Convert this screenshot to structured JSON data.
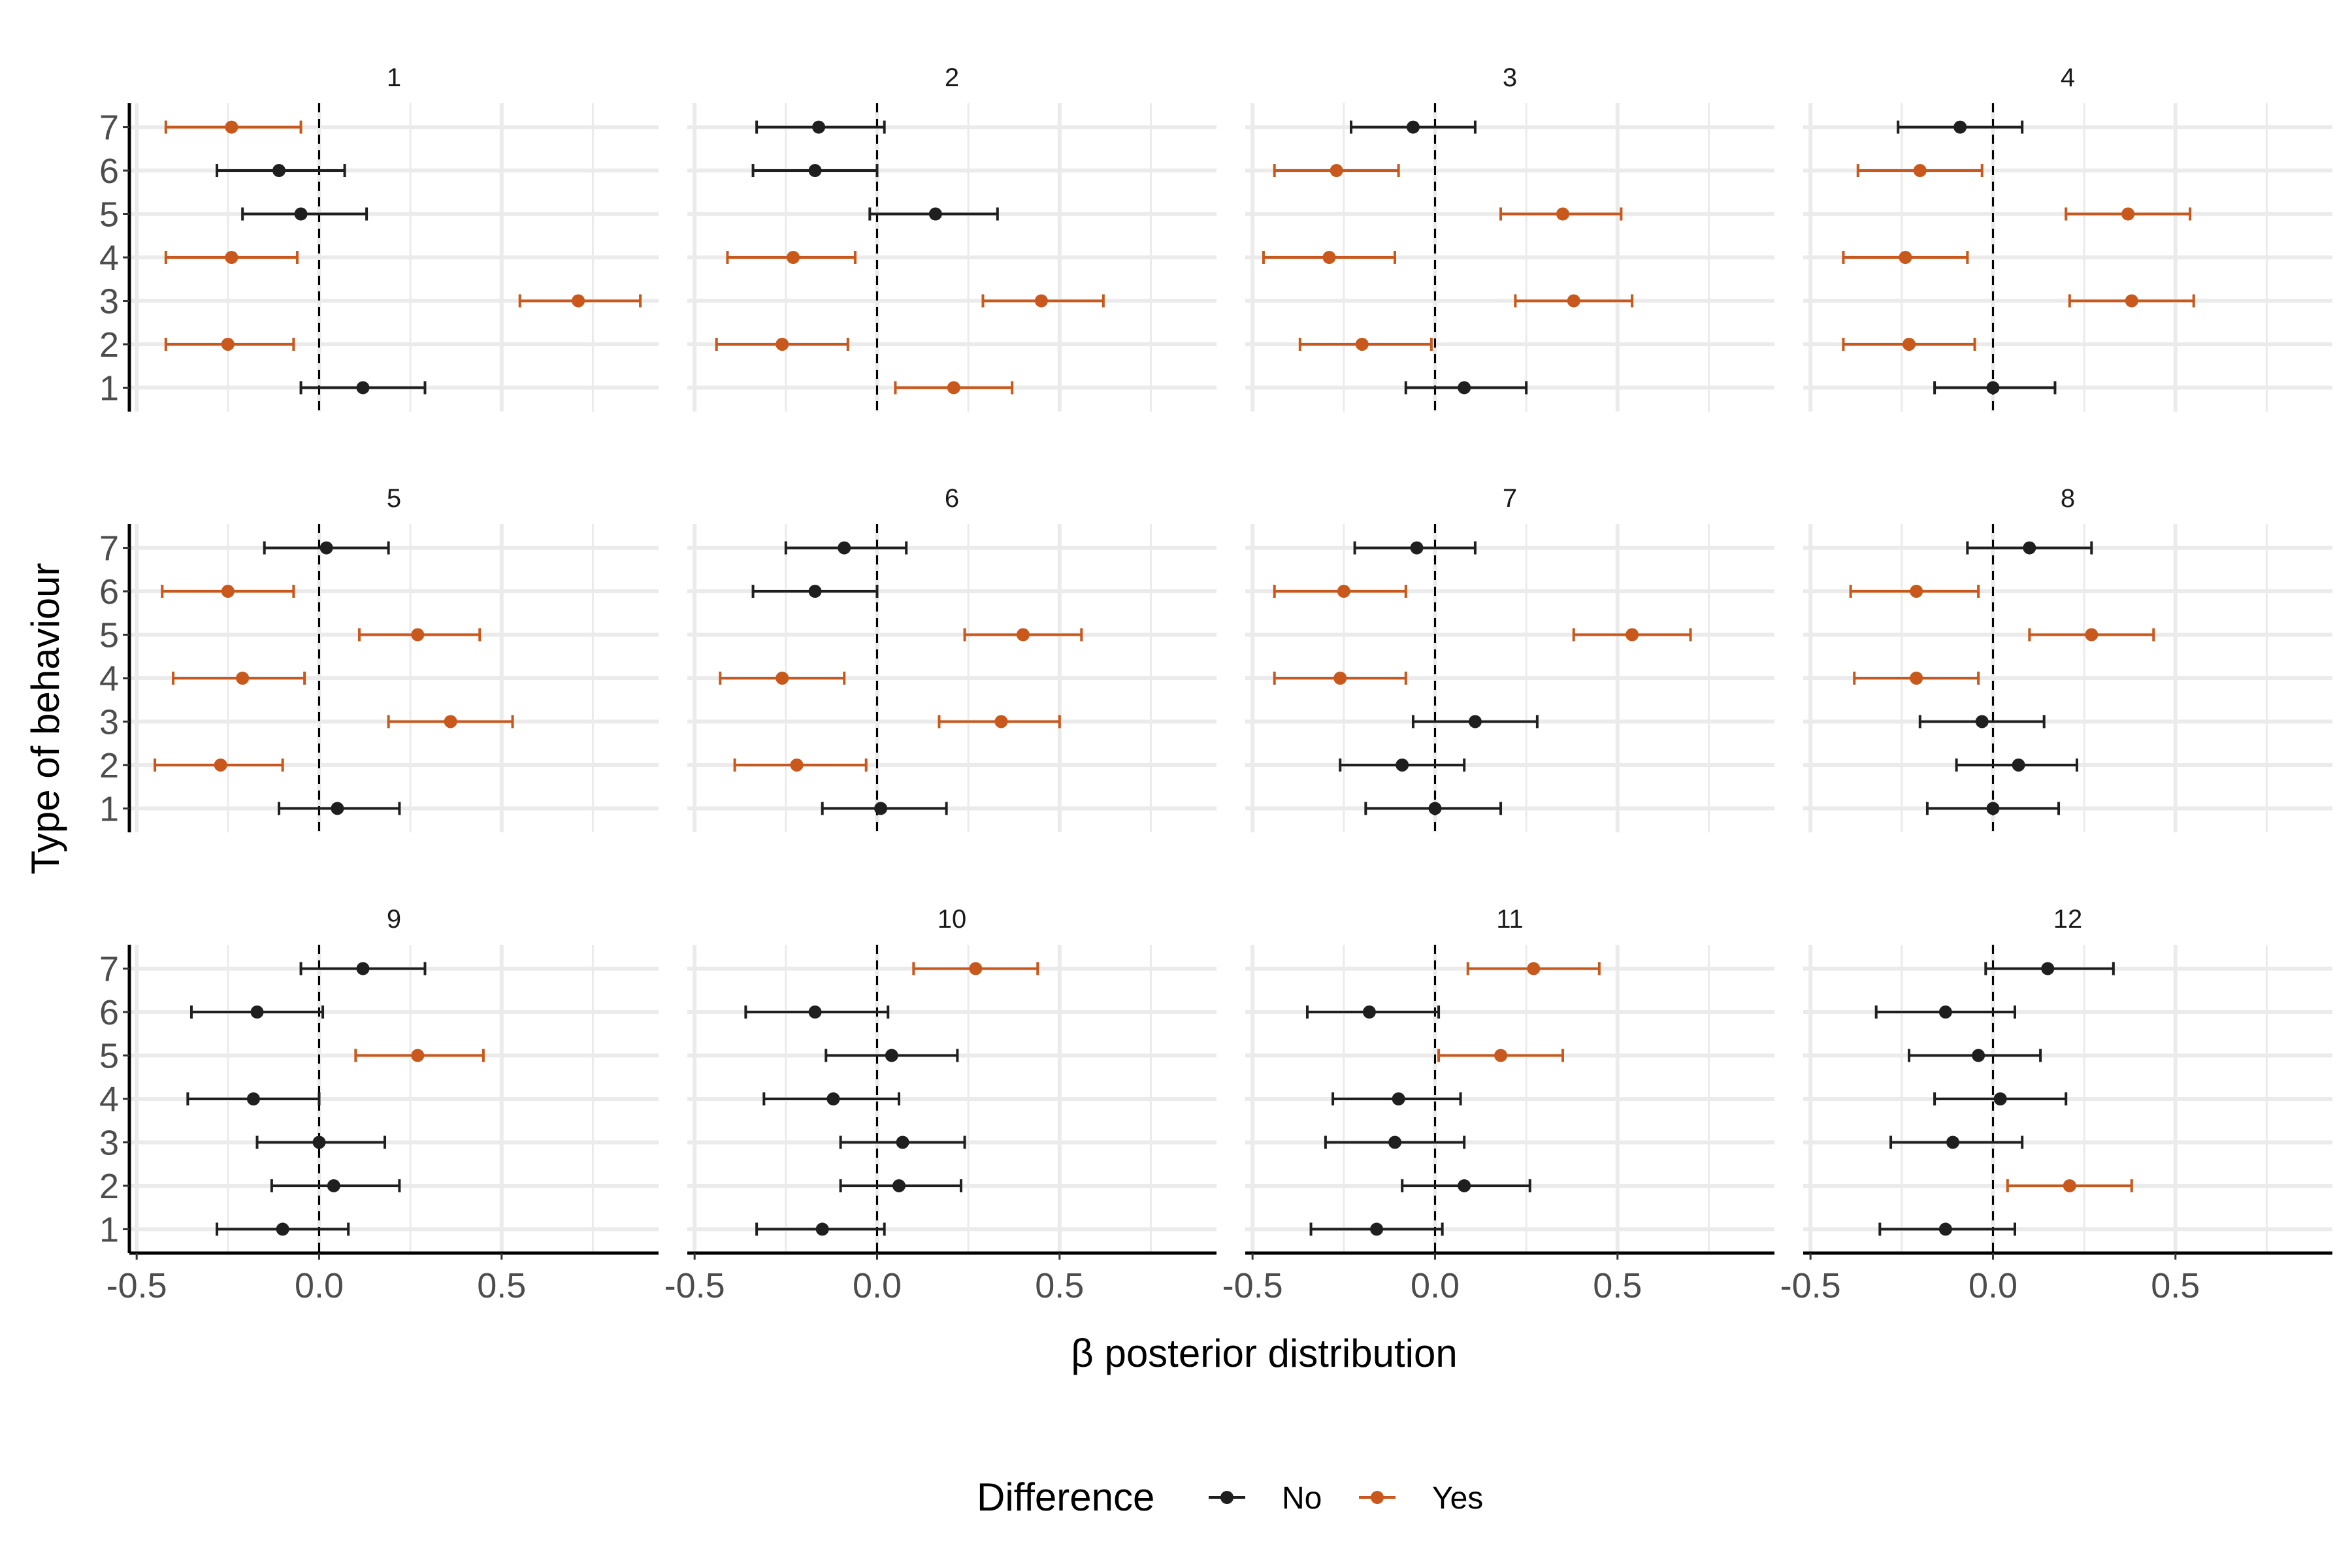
{
  "chart_data": {
    "type": "forest",
    "xlabel": "β posterior distribution",
    "ylabel": "Type of behaviour",
    "xlim": [
      -0.52,
      0.93
    ],
    "xticks": [
      -0.5,
      0.0,
      0.5
    ],
    "xtick_labels": [
      "-0.5",
      "0.0",
      "0.5"
    ],
    "xgrid_minor": [
      -0.25,
      0.25,
      0.75
    ],
    "yticks": [
      1,
      2,
      3,
      4,
      5,
      6,
      7
    ],
    "ytick_labels": [
      "1",
      "2",
      "3",
      "4",
      "5",
      "6",
      "7"
    ],
    "legend": {
      "title": "Difference",
      "position": "bottom",
      "entries": [
        {
          "label": "No",
          "color": "#1f1f1f"
        },
        {
          "label": "Yes",
          "color": "#c8581b"
        }
      ]
    },
    "colors": {
      "No": "#1f1f1f",
      "Yes": "#c8581b"
    },
    "panels": [
      {
        "title": "1",
        "rows": [
          {
            "y": 7,
            "est": -0.24,
            "lo": -0.42,
            "hi": -0.05,
            "diff": "Yes"
          },
          {
            "y": 6,
            "est": -0.11,
            "lo": -0.28,
            "hi": 0.07,
            "diff": "No"
          },
          {
            "y": 5,
            "est": -0.05,
            "lo": -0.21,
            "hi": 0.13,
            "diff": "No"
          },
          {
            "y": 4,
            "est": -0.24,
            "lo": -0.42,
            "hi": -0.06,
            "diff": "Yes"
          },
          {
            "y": 3,
            "est": 0.71,
            "lo": 0.55,
            "hi": 0.88,
            "diff": "Yes"
          },
          {
            "y": 2,
            "est": -0.25,
            "lo": -0.42,
            "hi": -0.07,
            "diff": "Yes"
          },
          {
            "y": 1,
            "est": 0.12,
            "lo": -0.05,
            "hi": 0.29,
            "diff": "No"
          }
        ]
      },
      {
        "title": "2",
        "rows": [
          {
            "y": 7,
            "est": -0.16,
            "lo": -0.33,
            "hi": 0.02,
            "diff": "No"
          },
          {
            "y": 6,
            "est": -0.17,
            "lo": -0.34,
            "hi": 0.0,
            "diff": "No"
          },
          {
            "y": 5,
            "est": 0.16,
            "lo": -0.02,
            "hi": 0.33,
            "diff": "No"
          },
          {
            "y": 4,
            "est": -0.23,
            "lo": -0.41,
            "hi": -0.06,
            "diff": "Yes"
          },
          {
            "y": 3,
            "est": 0.45,
            "lo": 0.29,
            "hi": 0.62,
            "diff": "Yes"
          },
          {
            "y": 2,
            "est": -0.26,
            "lo": -0.44,
            "hi": -0.08,
            "diff": "Yes"
          },
          {
            "y": 1,
            "est": 0.21,
            "lo": 0.05,
            "hi": 0.37,
            "diff": "Yes"
          }
        ]
      },
      {
        "title": "3",
        "rows": [
          {
            "y": 7,
            "est": -0.06,
            "lo": -0.23,
            "hi": 0.11,
            "diff": "No"
          },
          {
            "y": 6,
            "est": -0.27,
            "lo": -0.44,
            "hi": -0.1,
            "diff": "Yes"
          },
          {
            "y": 5,
            "est": 0.35,
            "lo": 0.18,
            "hi": 0.51,
            "diff": "Yes"
          },
          {
            "y": 4,
            "est": -0.29,
            "lo": -0.47,
            "hi": -0.11,
            "diff": "Yes"
          },
          {
            "y": 3,
            "est": 0.38,
            "lo": 0.22,
            "hi": 0.54,
            "diff": "Yes"
          },
          {
            "y": 2,
            "est": -0.2,
            "lo": -0.37,
            "hi": -0.01,
            "diff": "Yes"
          },
          {
            "y": 1,
            "est": 0.08,
            "lo": -0.08,
            "hi": 0.25,
            "diff": "No"
          }
        ]
      },
      {
        "title": "4",
        "rows": [
          {
            "y": 7,
            "est": -0.09,
            "lo": -0.26,
            "hi": 0.08,
            "diff": "No"
          },
          {
            "y": 6,
            "est": -0.2,
            "lo": -0.37,
            "hi": -0.03,
            "diff": "Yes"
          },
          {
            "y": 5,
            "est": 0.37,
            "lo": 0.2,
            "hi": 0.54,
            "diff": "Yes"
          },
          {
            "y": 4,
            "est": -0.24,
            "lo": -0.41,
            "hi": -0.07,
            "diff": "Yes"
          },
          {
            "y": 3,
            "est": 0.38,
            "lo": 0.21,
            "hi": 0.55,
            "diff": "Yes"
          },
          {
            "y": 2,
            "est": -0.23,
            "lo": -0.41,
            "hi": -0.05,
            "diff": "Yes"
          },
          {
            "y": 1,
            "est": 0.0,
            "lo": -0.16,
            "hi": 0.17,
            "diff": "No"
          }
        ]
      },
      {
        "title": "5",
        "rows": [
          {
            "y": 7,
            "est": 0.02,
            "lo": -0.15,
            "hi": 0.19,
            "diff": "No"
          },
          {
            "y": 6,
            "est": -0.25,
            "lo": -0.43,
            "hi": -0.07,
            "diff": "Yes"
          },
          {
            "y": 5,
            "est": 0.27,
            "lo": 0.11,
            "hi": 0.44,
            "diff": "Yes"
          },
          {
            "y": 4,
            "est": -0.21,
            "lo": -0.4,
            "hi": -0.04,
            "diff": "Yes"
          },
          {
            "y": 3,
            "est": 0.36,
            "lo": 0.19,
            "hi": 0.53,
            "diff": "Yes"
          },
          {
            "y": 2,
            "est": -0.27,
            "lo": -0.45,
            "hi": -0.1,
            "diff": "Yes"
          },
          {
            "y": 1,
            "est": 0.05,
            "lo": -0.11,
            "hi": 0.22,
            "diff": "No"
          }
        ]
      },
      {
        "title": "6",
        "rows": [
          {
            "y": 7,
            "est": -0.09,
            "lo": -0.25,
            "hi": 0.08,
            "diff": "No"
          },
          {
            "y": 6,
            "est": -0.17,
            "lo": -0.34,
            "hi": 0.0,
            "diff": "No"
          },
          {
            "y": 5,
            "est": 0.4,
            "lo": 0.24,
            "hi": 0.56,
            "diff": "Yes"
          },
          {
            "y": 4,
            "est": -0.26,
            "lo": -0.43,
            "hi": -0.09,
            "diff": "Yes"
          },
          {
            "y": 3,
            "est": 0.34,
            "lo": 0.17,
            "hi": 0.5,
            "diff": "Yes"
          },
          {
            "y": 2,
            "est": -0.22,
            "lo": -0.39,
            "hi": -0.03,
            "diff": "Yes"
          },
          {
            "y": 1,
            "est": 0.01,
            "lo": -0.15,
            "hi": 0.19,
            "diff": "No"
          }
        ]
      },
      {
        "title": "7",
        "rows": [
          {
            "y": 7,
            "est": -0.05,
            "lo": -0.22,
            "hi": 0.11,
            "diff": "No"
          },
          {
            "y": 6,
            "est": -0.25,
            "lo": -0.44,
            "hi": -0.08,
            "diff": "Yes"
          },
          {
            "y": 5,
            "est": 0.54,
            "lo": 0.38,
            "hi": 0.7,
            "diff": "Yes"
          },
          {
            "y": 4,
            "est": -0.26,
            "lo": -0.44,
            "hi": -0.08,
            "diff": "Yes"
          },
          {
            "y": 3,
            "est": 0.11,
            "lo": -0.06,
            "hi": 0.28,
            "diff": "No"
          },
          {
            "y": 2,
            "est": -0.09,
            "lo": -0.26,
            "hi": 0.08,
            "diff": "No"
          },
          {
            "y": 1,
            "est": 0.0,
            "lo": -0.19,
            "hi": 0.18,
            "diff": "No"
          }
        ]
      },
      {
        "title": "8",
        "rows": [
          {
            "y": 7,
            "est": 0.1,
            "lo": -0.07,
            "hi": 0.27,
            "diff": "No"
          },
          {
            "y": 6,
            "est": -0.21,
            "lo": -0.39,
            "hi": -0.04,
            "diff": "Yes"
          },
          {
            "y": 5,
            "est": 0.27,
            "lo": 0.1,
            "hi": 0.44,
            "diff": "Yes"
          },
          {
            "y": 4,
            "est": -0.21,
            "lo": -0.38,
            "hi": -0.04,
            "diff": "Yes"
          },
          {
            "y": 3,
            "est": -0.03,
            "lo": -0.2,
            "hi": 0.14,
            "diff": "No"
          },
          {
            "y": 2,
            "est": 0.07,
            "lo": -0.1,
            "hi": 0.23,
            "diff": "No"
          },
          {
            "y": 1,
            "est": 0.0,
            "lo": -0.18,
            "hi": 0.18,
            "diff": "No"
          }
        ]
      },
      {
        "title": "9",
        "rows": [
          {
            "y": 7,
            "est": 0.12,
            "lo": -0.05,
            "hi": 0.29,
            "diff": "No"
          },
          {
            "y": 6,
            "est": -0.17,
            "lo": -0.35,
            "hi": 0.01,
            "diff": "No"
          },
          {
            "y": 5,
            "est": 0.27,
            "lo": 0.1,
            "hi": 0.45,
            "diff": "Yes"
          },
          {
            "y": 4,
            "est": -0.18,
            "lo": -0.36,
            "hi": 0.0,
            "diff": "No"
          },
          {
            "y": 3,
            "est": 0.0,
            "lo": -0.17,
            "hi": 0.18,
            "diff": "No"
          },
          {
            "y": 2,
            "est": 0.04,
            "lo": -0.13,
            "hi": 0.22,
            "diff": "No"
          },
          {
            "y": 1,
            "est": -0.1,
            "lo": -0.28,
            "hi": 0.08,
            "diff": "No"
          }
        ]
      },
      {
        "title": "10",
        "rows": [
          {
            "y": 7,
            "est": 0.27,
            "lo": 0.1,
            "hi": 0.44,
            "diff": "Yes"
          },
          {
            "y": 6,
            "est": -0.17,
            "lo": -0.36,
            "hi": 0.03,
            "diff": "No"
          },
          {
            "y": 5,
            "est": 0.04,
            "lo": -0.14,
            "hi": 0.22,
            "diff": "No"
          },
          {
            "y": 4,
            "est": -0.12,
            "lo": -0.31,
            "hi": 0.06,
            "diff": "No"
          },
          {
            "y": 3,
            "est": 0.07,
            "lo": -0.1,
            "hi": 0.24,
            "diff": "No"
          },
          {
            "y": 2,
            "est": 0.06,
            "lo": -0.1,
            "hi": 0.23,
            "diff": "No"
          },
          {
            "y": 1,
            "est": -0.15,
            "lo": -0.33,
            "hi": 0.02,
            "diff": "No"
          }
        ]
      },
      {
        "title": "11",
        "rows": [
          {
            "y": 7,
            "est": 0.27,
            "lo": 0.09,
            "hi": 0.45,
            "diff": "Yes"
          },
          {
            "y": 6,
            "est": -0.18,
            "lo": -0.35,
            "hi": 0.01,
            "diff": "No"
          },
          {
            "y": 5,
            "est": 0.18,
            "lo": 0.01,
            "hi": 0.35,
            "diff": "Yes"
          },
          {
            "y": 4,
            "est": -0.1,
            "lo": -0.28,
            "hi": 0.07,
            "diff": "No"
          },
          {
            "y": 3,
            "est": -0.11,
            "lo": -0.3,
            "hi": 0.08,
            "diff": "No"
          },
          {
            "y": 2,
            "est": 0.08,
            "lo": -0.09,
            "hi": 0.26,
            "diff": "No"
          },
          {
            "y": 1,
            "est": -0.16,
            "lo": -0.34,
            "hi": 0.02,
            "diff": "No"
          }
        ]
      },
      {
        "title": "12",
        "rows": [
          {
            "y": 7,
            "est": 0.15,
            "lo": -0.02,
            "hi": 0.33,
            "diff": "No"
          },
          {
            "y": 6,
            "est": -0.13,
            "lo": -0.32,
            "hi": 0.06,
            "diff": "No"
          },
          {
            "y": 5,
            "est": -0.04,
            "lo": -0.23,
            "hi": 0.13,
            "diff": "No"
          },
          {
            "y": 4,
            "est": 0.02,
            "lo": -0.16,
            "hi": 0.2,
            "diff": "No"
          },
          {
            "y": 3,
            "est": -0.11,
            "lo": -0.28,
            "hi": 0.08,
            "diff": "No"
          },
          {
            "y": 2,
            "est": 0.21,
            "lo": 0.04,
            "hi": 0.38,
            "diff": "Yes"
          },
          {
            "y": 1,
            "est": -0.13,
            "lo": -0.31,
            "hi": 0.06,
            "diff": "No"
          }
        ]
      }
    ]
  }
}
